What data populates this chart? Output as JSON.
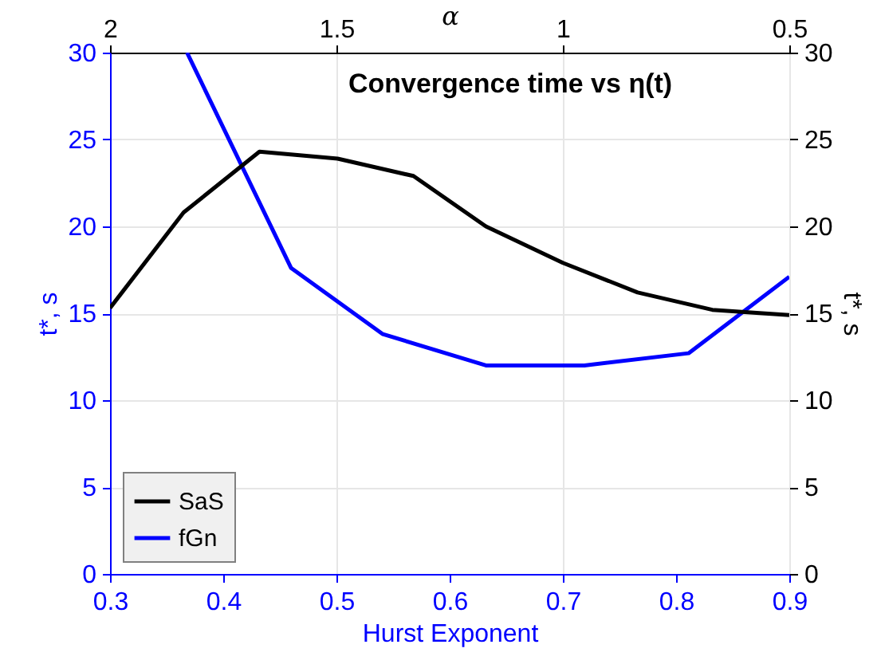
{
  "chart_data": {
    "type": "line",
    "title": "Convergence time vs η(t)",
    "xlabel": "Hurst Exponent",
    "ylabel": "t*, s",
    "y2label": "t*, s",
    "x2label": "α",
    "xlim": [
      0.3,
      0.9
    ],
    "xticks": [
      0.3,
      0.4,
      0.5,
      0.6,
      0.7,
      0.8,
      0.9
    ],
    "x2lim": [
      2,
      0.5
    ],
    "x2ticks": [
      2,
      1.5,
      1,
      0.5
    ],
    "ylim": [
      0,
      30
    ],
    "yticks": [
      0,
      5,
      10,
      15,
      20,
      25,
      30
    ],
    "y2lim": [
      0,
      30
    ],
    "y2ticks": [
      0,
      5,
      10,
      15,
      20,
      25,
      30
    ],
    "grid": true,
    "legend": "bottom left",
    "series": [
      {
        "name": "SaS",
        "color": "#000000",
        "axis": "y2",
        "x": [
          0.3,
          0.365,
          0.432,
          0.501,
          0.568,
          0.632,
          0.7,
          0.766,
          0.832,
          0.9
        ],
        "values": [
          15.3,
          20.8,
          24.3,
          23.9,
          22.9,
          20.0,
          17.9,
          16.2,
          15.2,
          14.9
        ]
      },
      {
        "name": "fGn",
        "color": "#0000ff",
        "x": [
          0.368,
          0.46,
          0.541,
          0.632,
          0.719,
          0.811,
          0.9
        ],
        "values": [
          30,
          17.6,
          13.8,
          12.0,
          12.0,
          12.7,
          17.1
        ]
      }
    ]
  }
}
